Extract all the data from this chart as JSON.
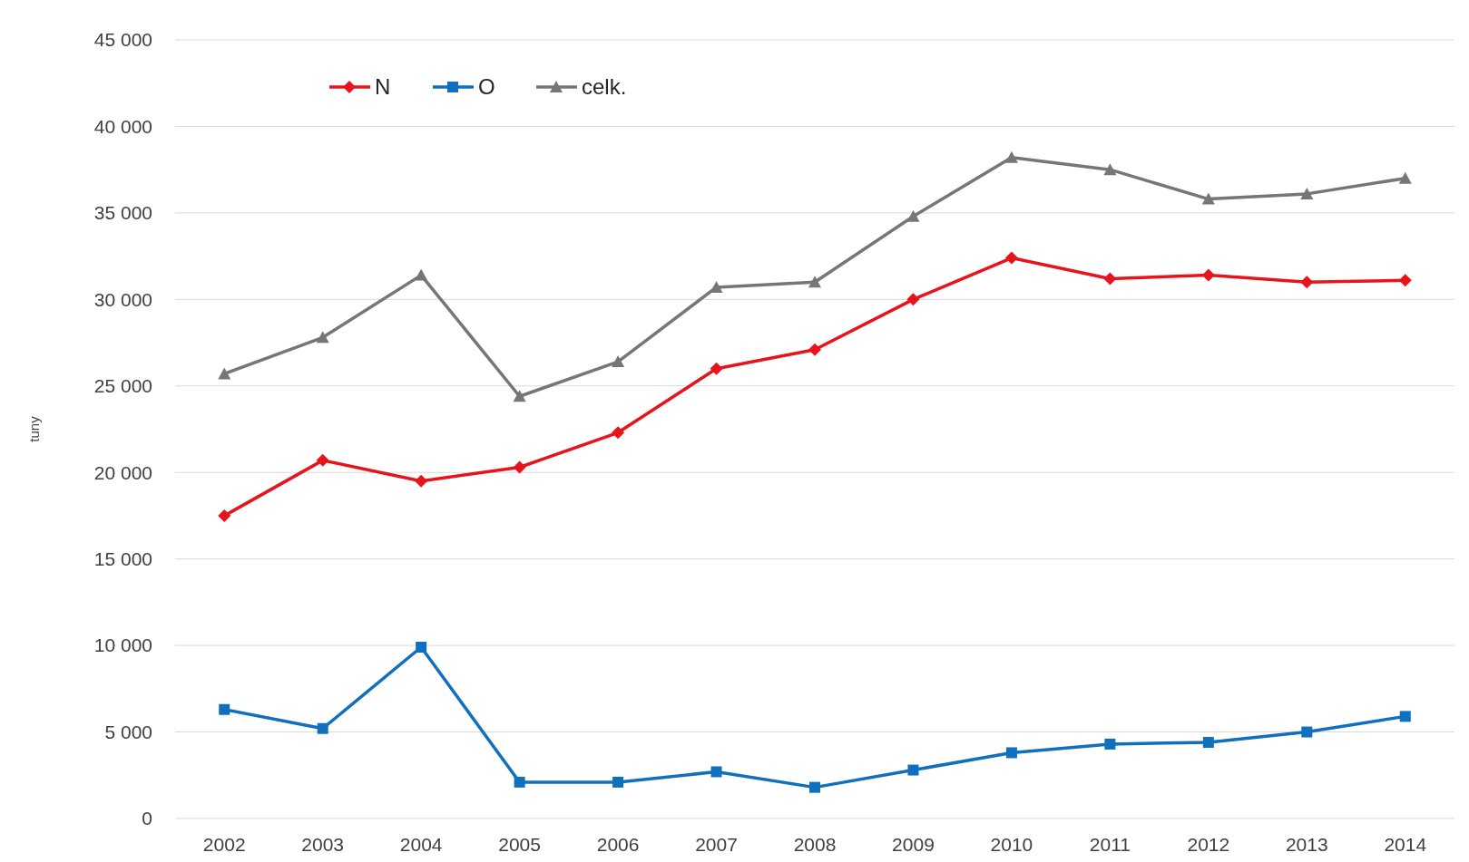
{
  "chart_data": {
    "type": "line",
    "ylabel": "tuny",
    "categories": [
      "2002",
      "2003",
      "2004",
      "2005",
      "2006",
      "2007",
      "2008",
      "2009",
      "2010",
      "2011",
      "2012",
      "2013",
      "2014"
    ],
    "series": [
      {
        "name": "N",
        "color": "#e8141b",
        "marker": "diamond",
        "values": [
          17500,
          20700,
          19500,
          20300,
          22300,
          26000,
          27100,
          30000,
          32400,
          31200,
          31400,
          31000,
          31100
        ]
      },
      {
        "name": "O",
        "color": "#1170be",
        "marker": "square",
        "values": [
          6300,
          5200,
          9900,
          2100,
          2100,
          2700,
          1800,
          2800,
          3800,
          4300,
          4400,
          5000,
          5900
        ]
      },
      {
        "name": "celk.",
        "color": "#767676",
        "marker": "triangle",
        "values": [
          25700,
          27800,
          31400,
          24400,
          26400,
          30700,
          31000,
          34800,
          38200,
          37500,
          35800,
          36100,
          37000
        ]
      }
    ],
    "ylim": [
      0,
      45000
    ],
    "yticks": [
      0,
      {
        "value": 5000,
        "label": "5 000"
      },
      {
        "value": 10000,
        "label": "10 000"
      },
      {
        "value": 15000,
        "label": "15 000"
      },
      {
        "value": 20000,
        "label": "20 000"
      },
      {
        "value": 25000,
        "label": "25 000"
      },
      {
        "value": 30000,
        "label": "30 000"
      },
      {
        "value": 35000,
        "label": "35 000"
      },
      {
        "value": 40000,
        "label": "40 000"
      },
      {
        "value": 45000,
        "label": "45 000"
      }
    ],
    "grid": "y",
    "legend": "top left",
    "line_style": "solid"
  }
}
